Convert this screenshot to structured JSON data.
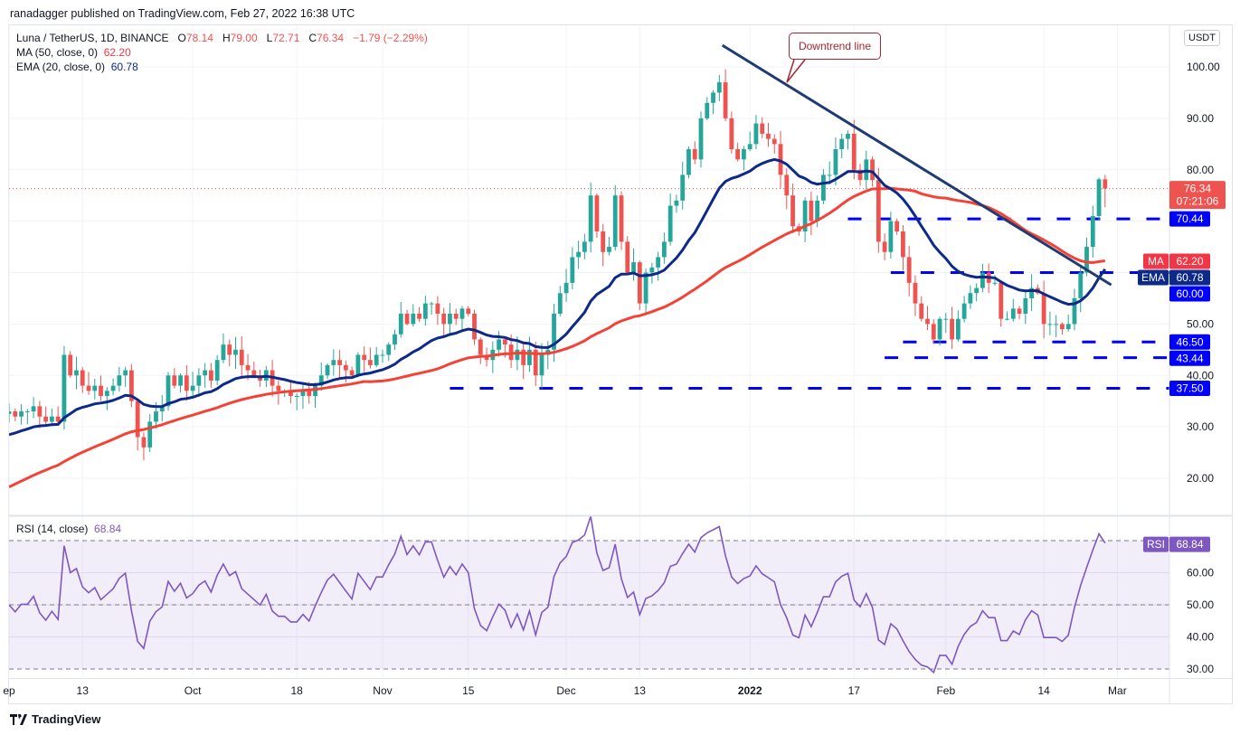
{
  "publisher": "ranadagger published on TradingView.com, Feb 27, 2022 16:38 UTC",
  "legend": {
    "symbol": "Luna / TetherUS, 1D, BINANCE",
    "o_label": "O",
    "o": "78.14",
    "h_label": "H",
    "h": "79.00",
    "l_label": "L",
    "l": "72.71",
    "c_label": "C",
    "c": "76.34",
    "change": "−1.79 (−2.29%)",
    "ma": "MA (50, close, 0)",
    "ma_value": "62.20",
    "ema": "EMA (20, close, 0)",
    "ema_value": "60.78",
    "rsi": "RSI (14, close)",
    "rsi_value": "68.84"
  },
  "currency_button": "USDT",
  "brand": "TradingView",
  "annotation": {
    "text": "Downtrend line"
  },
  "price_badges": {
    "last": "76.34",
    "countdown": "07:21:06",
    "ma_tag": "MA",
    "ma": "62.20",
    "ema_tag": "EMA",
    "ema": "60.78",
    "rsi_tag": "RSI",
    "rsi": "68.84"
  },
  "colors": {
    "up": "#26a69a",
    "down": "#ef5350",
    "ma": "#f44336",
    "ema": "#0d2a8a",
    "level": "#0000ff",
    "trend": "#1f3b73",
    "rsi": "#7e57c2"
  },
  "chart_data": {
    "type": "candlestick",
    "title": "Luna / TetherUS, 1D, BINANCE",
    "start_date": "2021-09-01",
    "closes": [
      33,
      32,
      33,
      33,
      34,
      32,
      31,
      32,
      31,
      44,
      40,
      41,
      38,
      37,
      38,
      36,
      37,
      38,
      40,
      41,
      35,
      28,
      26,
      31,
      33,
      34,
      40,
      38,
      40,
      37,
      38,
      40,
      41,
      39,
      43,
      46,
      44,
      45,
      42,
      41,
      40,
      39,
      41,
      38,
      37,
      37,
      36,
      36,
      37,
      36,
      38,
      40,
      42,
      43,
      42,
      41,
      40,
      44,
      43,
      42,
      44,
      44,
      46,
      48,
      52,
      50,
      52,
      51,
      54,
      54,
      52,
      50,
      52,
      51,
      53,
      52,
      47,
      44,
      43,
      45,
      47,
      46,
      43,
      45,
      42,
      45,
      40,
      44,
      45,
      52,
      56,
      58,
      63,
      64,
      66,
      75,
      68,
      64,
      65,
      75,
      66,
      60,
      62,
      54,
      60,
      61,
      63,
      66,
      73,
      74,
      79,
      84,
      82,
      90,
      93,
      95,
      97,
      90,
      84,
      82,
      84,
      85,
      89,
      87,
      86,
      85,
      79,
      75,
      69,
      68,
      74,
      70,
      74,
      79,
      79,
      84,
      86,
      87,
      80,
      78,
      82,
      78,
      66,
      64,
      70,
      68,
      63,
      58,
      54,
      51,
      50,
      47,
      51,
      51,
      47,
      51,
      54,
      56,
      57,
      60,
      58,
      58,
      51,
      51,
      53,
      52,
      55,
      57,
      56,
      50,
      50,
      50,
      49,
      50,
      55,
      60,
      65,
      71,
      78.14,
      76.34
    ],
    "last_candle": {
      "open": 78.14,
      "high": 79.0,
      "low": 72.71,
      "close": 76.34
    },
    "y_ticks": [
      "100.00",
      "90.00",
      "80.00",
      "50.00",
      "40.00",
      "30.00",
      "20.00"
    ],
    "ylim": [
      14,
      108
    ],
    "x_ticks": [
      {
        "label": "ep",
        "day": 0
      },
      {
        "label": "13",
        "day": 12
      },
      {
        "label": "Oct",
        "day": 30
      },
      {
        "label": "18",
        "day": 47
      },
      {
        "label": "Nov",
        "day": 61
      },
      {
        "label": "15",
        "day": 75
      },
      {
        "label": "Dec",
        "day": 91
      },
      {
        "label": "13",
        "day": 103
      },
      {
        "label": "2022",
        "day": 121
      },
      {
        "label": "17",
        "day": 138
      },
      {
        "label": "Feb",
        "day": 153
      },
      {
        "label": "14",
        "day": 169
      },
      {
        "label": "Mar",
        "day": 181
      }
    ],
    "indicators": {
      "ma_period": 50,
      "ema_period": 20,
      "rsi_period": 14
    },
    "levels": [
      {
        "value": 70.44,
        "label": "70.44",
        "from_day": 137
      },
      {
        "value": 60.0,
        "label": "60.00",
        "from_day": 144
      },
      {
        "value": 46.5,
        "label": "46.50",
        "from_day": 146
      },
      {
        "value": 43.44,
        "label": "43.44",
        "from_day": 143
      },
      {
        "value": 37.5,
        "label": "37.50",
        "from_day": 72
      }
    ],
    "trendline": {
      "from": {
        "day": 116.5,
        "price": 104.2
      },
      "to": {
        "day": 180,
        "price": 57.6
      }
    },
    "rsi_ticks": [
      "60.00",
      "50.00",
      "40.00",
      "30.00"
    ],
    "rsi_band": [
      30,
      70
    ]
  }
}
